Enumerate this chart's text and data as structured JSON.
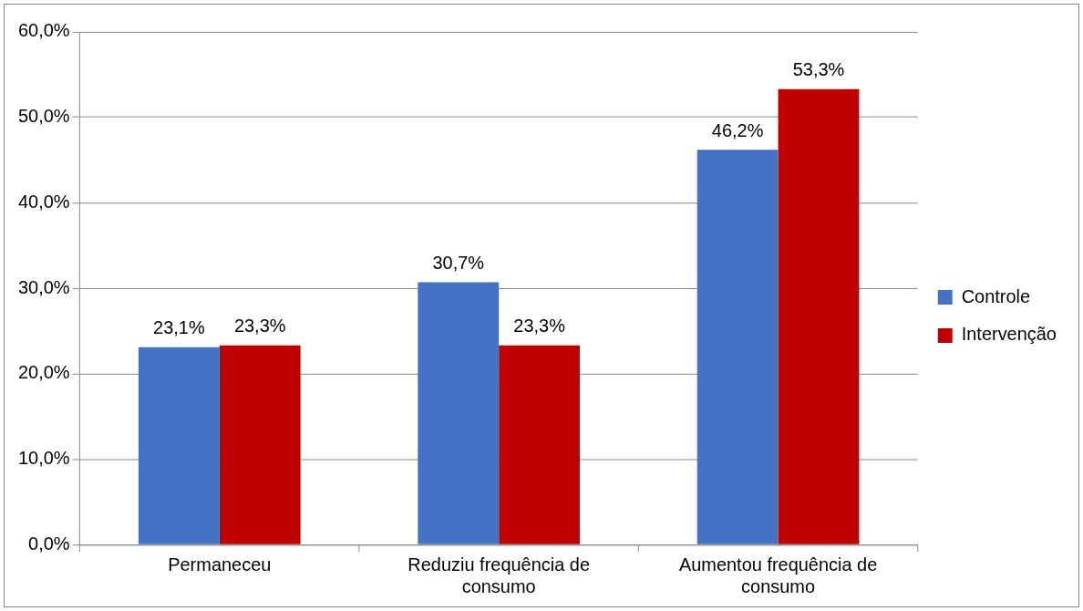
{
  "chart_data": {
    "type": "bar",
    "categories": [
      "Permaneceu",
      "Reduziu frequência de consumo",
      "Aumentou frequência de consumo"
    ],
    "series": [
      {
        "name": "Controle",
        "color": "#4472c4",
        "values": [
          23.1,
          30.7,
          46.2
        ],
        "value_labels": [
          "23,1%",
          "30,7%",
          "46,2%"
        ]
      },
      {
        "name": "Intervenção",
        "color": "#c00000",
        "values": [
          23.3,
          23.3,
          53.3
        ],
        "value_labels": [
          "23,3%",
          "23,3%",
          "53,3%"
        ]
      }
    ],
    "ylim": [
      0,
      60
    ],
    "yticks": [
      {
        "value": 0,
        "label": "0,0%"
      },
      {
        "value": 10,
        "label": "10,0%"
      },
      {
        "value": 20,
        "label": "20,0%"
      },
      {
        "value": 30,
        "label": "30,0%"
      },
      {
        "value": 40,
        "label": "40,0%"
      },
      {
        "value": 50,
        "label": "50,0%"
      },
      {
        "value": 60,
        "label": "60,0%"
      }
    ],
    "grid": "y",
    "legend": "right"
  }
}
